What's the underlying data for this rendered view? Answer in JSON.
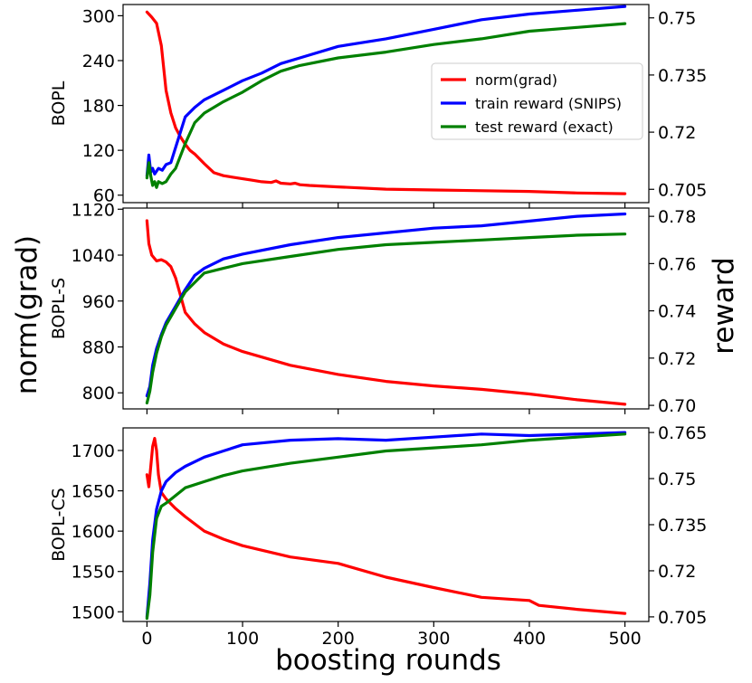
{
  "figure": {
    "xlabel": "boosting rounds",
    "left_ylabel": "norm(grad)",
    "right_ylabel": "reward"
  },
  "colors": {
    "norm": "#ff0000",
    "train": "#0000ff",
    "test": "#008000"
  },
  "chart_data": [
    {
      "type": "line",
      "panel_label": "BOPL",
      "xlim": [
        -25,
        525
      ],
      "ylim_left": [
        50,
        315
      ],
      "ylim_right": [
        0.7015,
        0.7535
      ],
      "x_ticks": [
        0,
        100,
        200,
        300,
        400,
        500
      ],
      "y_ticks_left": [
        60,
        120,
        180,
        240,
        300
      ],
      "y_ticks_right": [
        0.705,
        0.72,
        0.735,
        0.75
      ],
      "legend": {
        "position": "center-right",
        "entries": [
          "norm(grad)",
          "train reward (SNIPS)",
          "test reward (exact)"
        ]
      },
      "series": [
        {
          "name": "norm(grad)",
          "axis": "left",
          "color_key": "norm",
          "x": [
            0,
            5,
            10,
            15,
            20,
            25,
            30,
            35,
            40,
            45,
            50,
            60,
            70,
            80,
            90,
            100,
            110,
            120,
            130,
            135,
            140,
            150,
            155,
            160,
            170,
            200,
            250,
            300,
            350,
            400,
            450,
            500
          ],
          "y": [
            305,
            298,
            290,
            260,
            200,
            170,
            150,
            138,
            128,
            120,
            115,
            102,
            90,
            86,
            84,
            82,
            80,
            78,
            77,
            79,
            76,
            75,
            76,
            74,
            73,
            71,
            68,
            67,
            66,
            65,
            63,
            62
          ]
        },
        {
          "name": "train reward (SNIPS)",
          "axis": "right",
          "color_key": "train",
          "x": [
            0,
            2,
            4,
            6,
            8,
            12,
            16,
            20,
            25,
            30,
            40,
            50,
            60,
            80,
            100,
            120,
            140,
            160,
            200,
            250,
            300,
            350,
            400,
            450,
            500
          ],
          "y": [
            0.7085,
            0.714,
            0.7095,
            0.7105,
            0.709,
            0.7105,
            0.71,
            0.7115,
            0.712,
            0.716,
            0.724,
            0.7265,
            0.7285,
            0.731,
            0.7335,
            0.7355,
            0.738,
            0.7395,
            0.7425,
            0.7445,
            0.747,
            0.7495,
            0.751,
            0.752,
            0.753
          ]
        },
        {
          "name": "test reward (exact)",
          "axis": "right",
          "color_key": "test",
          "x": [
            0,
            2,
            4,
            6,
            8,
            10,
            12,
            16,
            20,
            25,
            30,
            40,
            50,
            60,
            80,
            100,
            120,
            140,
            160,
            200,
            250,
            300,
            350,
            400,
            450,
            500
          ],
          "y": [
            0.708,
            0.712,
            0.7085,
            0.706,
            0.707,
            0.7055,
            0.707,
            0.7065,
            0.707,
            0.709,
            0.7105,
            0.717,
            0.7225,
            0.725,
            0.728,
            0.7305,
            0.7335,
            0.736,
            0.7375,
            0.7395,
            0.741,
            0.743,
            0.7445,
            0.7465,
            0.7475,
            0.7485
          ]
        }
      ]
    },
    {
      "type": "line",
      "panel_label": "BOPL-S",
      "xlim": [
        -25,
        525
      ],
      "ylim_left": [
        772,
        1122
      ],
      "ylim_right": [
        0.6985,
        0.7835
      ],
      "x_ticks": [
        0,
        100,
        200,
        300,
        400,
        500
      ],
      "y_ticks_left": [
        800,
        880,
        960,
        1040,
        1120
      ],
      "y_ticks_right": [
        0.7,
        0.72,
        0.74,
        0.76,
        0.78
      ],
      "series": [
        {
          "name": "norm(grad)",
          "axis": "left",
          "color_key": "norm",
          "x": [
            0,
            2,
            5,
            10,
            15,
            20,
            25,
            30,
            35,
            40,
            50,
            60,
            80,
            100,
            150,
            200,
            250,
            300,
            350,
            400,
            450,
            500
          ],
          "y": [
            1100,
            1060,
            1040,
            1030,
            1032,
            1028,
            1020,
            1000,
            970,
            940,
            920,
            905,
            885,
            872,
            848,
            832,
            820,
            812,
            806,
            798,
            788,
            780
          ]
        },
        {
          "name": "train reward (SNIPS)",
          "axis": "right",
          "color_key": "train",
          "x": [
            0,
            3,
            6,
            10,
            15,
            20,
            30,
            40,
            50,
            60,
            80,
            100,
            150,
            200,
            250,
            300,
            350,
            400,
            450,
            500
          ],
          "y": [
            0.704,
            0.708,
            0.717,
            0.724,
            0.73,
            0.735,
            0.742,
            0.749,
            0.755,
            0.758,
            0.762,
            0.764,
            0.768,
            0.771,
            0.773,
            0.775,
            0.776,
            0.778,
            0.78,
            0.781
          ]
        },
        {
          "name": "test reward (exact)",
          "axis": "right",
          "color_key": "test",
          "x": [
            0,
            3,
            6,
            10,
            15,
            20,
            30,
            40,
            50,
            60,
            80,
            100,
            150,
            200,
            250,
            300,
            350,
            400,
            450,
            500
          ],
          "y": [
            0.701,
            0.706,
            0.714,
            0.722,
            0.729,
            0.734,
            0.741,
            0.748,
            0.752,
            0.756,
            0.758,
            0.76,
            0.763,
            0.766,
            0.768,
            0.769,
            0.77,
            0.771,
            0.772,
            0.7725
          ]
        }
      ]
    },
    {
      "type": "line",
      "panel_label": "BOPL-CS",
      "xlim": [
        -25,
        525
      ],
      "ylim_left": [
        1488,
        1728
      ],
      "ylim_right": [
        0.7035,
        0.7665
      ],
      "x_ticks": [
        0,
        100,
        200,
        300,
        400,
        500
      ],
      "y_ticks_left": [
        1500,
        1550,
        1600,
        1650,
        1700
      ],
      "y_ticks_right": [
        0.705,
        0.72,
        0.735,
        0.75,
        0.765
      ],
      "series": [
        {
          "name": "norm(grad)",
          "axis": "left",
          "color_key": "norm",
          "x": [
            0,
            2,
            4,
            6,
            8,
            10,
            12,
            15,
            20,
            30,
            40,
            60,
            80,
            100,
            150,
            200,
            250,
            300,
            350,
            400,
            410,
            450,
            500
          ],
          "y": [
            1670,
            1655,
            1680,
            1705,
            1715,
            1700,
            1670,
            1648,
            1640,
            1628,
            1618,
            1600,
            1590,
            1582,
            1568,
            1560,
            1543,
            1530,
            1518,
            1514,
            1508,
            1503,
            1498
          ]
        },
        {
          "name": "train reward (SNIPS)",
          "axis": "right",
          "color_key": "train",
          "x": [
            0,
            3,
            6,
            10,
            15,
            20,
            30,
            40,
            60,
            80,
            100,
            150,
            200,
            250,
            300,
            350,
            400,
            450,
            500
          ],
          "y": [
            0.705,
            0.716,
            0.73,
            0.74,
            0.746,
            0.749,
            0.752,
            0.754,
            0.757,
            0.759,
            0.761,
            0.7625,
            0.763,
            0.7625,
            0.7635,
            0.7645,
            0.764,
            0.7645,
            0.765
          ]
        },
        {
          "name": "test reward (exact)",
          "axis": "right",
          "color_key": "test",
          "x": [
            0,
            3,
            6,
            10,
            15,
            20,
            30,
            40,
            60,
            80,
            100,
            150,
            200,
            250,
            300,
            350,
            400,
            450,
            500
          ],
          "y": [
            0.7045,
            0.712,
            0.726,
            0.737,
            0.741,
            0.742,
            0.7445,
            0.747,
            0.749,
            0.751,
            0.7525,
            0.755,
            0.757,
            0.759,
            0.76,
            0.761,
            0.7625,
            0.7635,
            0.7645
          ]
        }
      ]
    }
  ]
}
